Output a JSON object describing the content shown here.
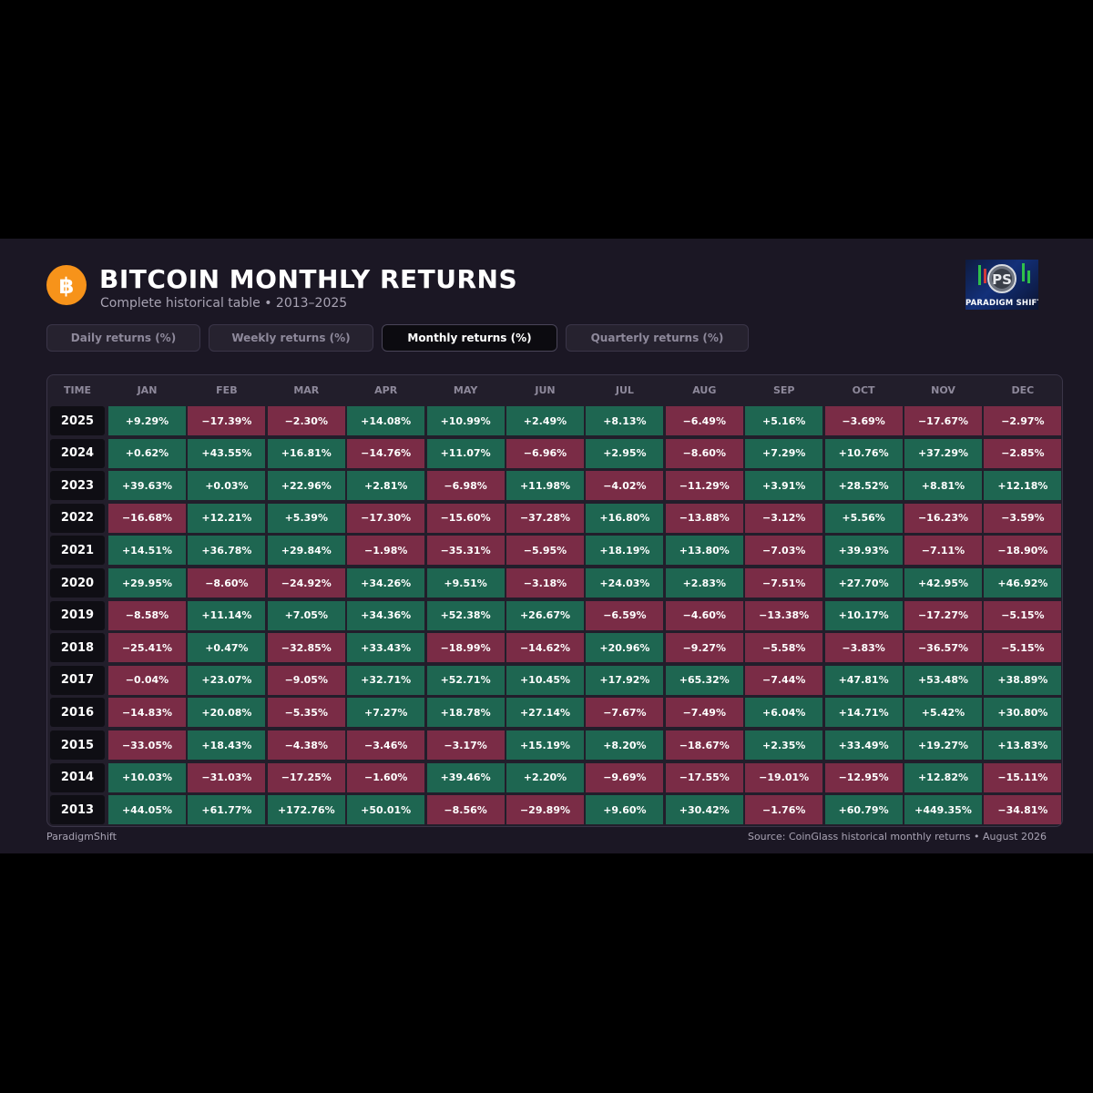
{
  "header": {
    "coin_icon": "bitcoin-icon",
    "title": "BITCOIN MONTHLY RETURNS",
    "subtitle": "Complete historical table • 2013–2025",
    "logo_text": "PARADIGM SHIFT"
  },
  "tabs": [
    {
      "label": "Daily returns (%)",
      "active": false
    },
    {
      "label": "Weekly returns (%)",
      "active": false
    },
    {
      "label": "Monthly returns (%)",
      "active": true
    },
    {
      "label": "Quarterly returns (%)",
      "active": false
    }
  ],
  "colors": {
    "positive": "#1e6651",
    "negative": "#7a2c46",
    "accent": "#f7931a"
  },
  "table": {
    "time_header": "TIME",
    "months": [
      "JAN",
      "FEB",
      "MAR",
      "APR",
      "MAY",
      "JUN",
      "JUL",
      "AUG",
      "SEP",
      "OCT",
      "NOV",
      "DEC"
    ],
    "rows": [
      {
        "year": "2025",
        "values": [
          "+9.29%",
          "−17.39%",
          "−2.30%",
          "+14.08%",
          "+10.99%",
          "+2.49%",
          "+8.13%",
          "−6.49%",
          "+5.16%",
          "−3.69%",
          "−17.67%",
          "−2.97%"
        ]
      },
      {
        "year": "2024",
        "values": [
          "+0.62%",
          "+43.55%",
          "+16.81%",
          "−14.76%",
          "+11.07%",
          "−6.96%",
          "+2.95%",
          "−8.60%",
          "+7.29%",
          "+10.76%",
          "+37.29%",
          "−2.85%"
        ]
      },
      {
        "year": "2023",
        "values": [
          "+39.63%",
          "+0.03%",
          "+22.96%",
          "+2.81%",
          "−6.98%",
          "+11.98%",
          "−4.02%",
          "−11.29%",
          "+3.91%",
          "+28.52%",
          "+8.81%",
          "+12.18%"
        ]
      },
      {
        "year": "2022",
        "values": [
          "−16.68%",
          "+12.21%",
          "+5.39%",
          "−17.30%",
          "−15.60%",
          "−37.28%",
          "+16.80%",
          "−13.88%",
          "−3.12%",
          "+5.56%",
          "−16.23%",
          "−3.59%"
        ]
      },
      {
        "year": "2021",
        "values": [
          "+14.51%",
          "+36.78%",
          "+29.84%",
          "−1.98%",
          "−35.31%",
          "−5.95%",
          "+18.19%",
          "+13.80%",
          "−7.03%",
          "+39.93%",
          "−7.11%",
          "−18.90%"
        ]
      },
      {
        "year": "2020",
        "values": [
          "+29.95%",
          "−8.60%",
          "−24.92%",
          "+34.26%",
          "+9.51%",
          "−3.18%",
          "+24.03%",
          "+2.83%",
          "−7.51%",
          "+27.70%",
          "+42.95%",
          "+46.92%"
        ]
      },
      {
        "year": "2019",
        "values": [
          "−8.58%",
          "+11.14%",
          "+7.05%",
          "+34.36%",
          "+52.38%",
          "+26.67%",
          "−6.59%",
          "−4.60%",
          "−13.38%",
          "+10.17%",
          "−17.27%",
          "−5.15%"
        ]
      },
      {
        "year": "2018",
        "values": [
          "−25.41%",
          "+0.47%",
          "−32.85%",
          "+33.43%",
          "−18.99%",
          "−14.62%",
          "+20.96%",
          "−9.27%",
          "−5.58%",
          "−3.83%",
          "−36.57%",
          "−5.15%"
        ]
      },
      {
        "year": "2017",
        "values": [
          "−0.04%",
          "+23.07%",
          "−9.05%",
          "+32.71%",
          "+52.71%",
          "+10.45%",
          "+17.92%",
          "+65.32%",
          "−7.44%",
          "+47.81%",
          "+53.48%",
          "+38.89%"
        ]
      },
      {
        "year": "2016",
        "values": [
          "−14.83%",
          "+20.08%",
          "−5.35%",
          "+7.27%",
          "+18.78%",
          "+27.14%",
          "−7.67%",
          "−7.49%",
          "+6.04%",
          "+14.71%",
          "+5.42%",
          "+30.80%"
        ]
      },
      {
        "year": "2015",
        "values": [
          "−33.05%",
          "+18.43%",
          "−4.38%",
          "−3.46%",
          "−3.17%",
          "+15.19%",
          "+8.20%",
          "−18.67%",
          "+2.35%",
          "+33.49%",
          "+19.27%",
          "+13.83%"
        ]
      },
      {
        "year": "2014",
        "values": [
          "+10.03%",
          "−31.03%",
          "−17.25%",
          "−1.60%",
          "+39.46%",
          "+2.20%",
          "−9.69%",
          "−17.55%",
          "−19.01%",
          "−12.95%",
          "+12.82%",
          "−15.11%"
        ]
      },
      {
        "year": "2013",
        "values": [
          "+44.05%",
          "+61.77%",
          "+172.76%",
          "+50.01%",
          "−8.56%",
          "−29.89%",
          "+9.60%",
          "+30.42%",
          "−1.76%",
          "+60.79%",
          "+449.35%",
          "−34.81%"
        ]
      }
    ]
  },
  "footer": {
    "left": "ParadigmShift",
    "right": "Source: CoinGlass historical monthly returns • August 2026"
  }
}
